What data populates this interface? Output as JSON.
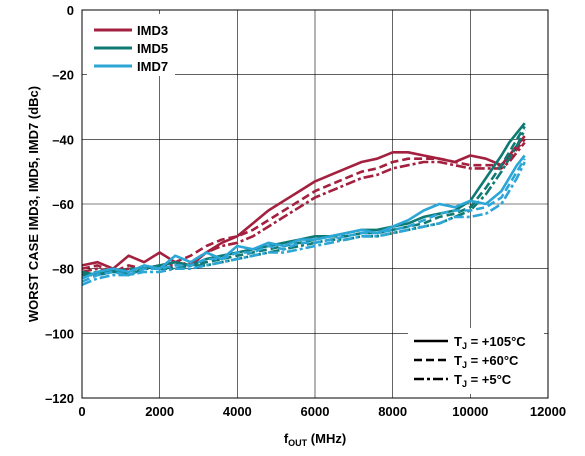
{
  "chart_data": {
    "type": "line",
    "xlabel": {
      "main": "f",
      "sub": "OUT",
      "rest": " (MHz)"
    },
    "ylabel": "WORST CASE IMD3, IMD5, IMD7 (dBc)",
    "xlim": [
      0,
      12000
    ],
    "ylim": [
      -120,
      0
    ],
    "xticks": [
      0,
      2000,
      4000,
      6000,
      8000,
      10000,
      12000
    ],
    "yticks": [
      0,
      -20,
      -40,
      -60,
      -80,
      -100,
      -120
    ],
    "xtick_labels": [
      "0",
      "2000",
      "4000",
      "6000",
      "8000",
      "10000",
      "12000"
    ],
    "ytick_labels": [
      "0",
      "–20",
      "–40",
      "–60",
      "–80",
      "–100",
      "–120"
    ],
    "grid": true,
    "legend_series": {
      "placement": "top-left",
      "items": [
        {
          "label": "IMD3",
          "color": "#a3203f"
        },
        {
          "label": "IMD5",
          "color": "#0e7a73"
        },
        {
          "label": "IMD7",
          "color": "#2ba6d6"
        }
      ]
    },
    "legend_temps": {
      "placement": "bottom-right",
      "items": [
        {
          "label_main": "T",
          "label_sub": "J",
          "label_rest": " = +105°C",
          "dash": "solid"
        },
        {
          "label_main": "T",
          "label_sub": "J",
          "label_rest": " = +60°C",
          "dash": "dashed"
        },
        {
          "label_main": "T",
          "label_sub": "J",
          "label_rest": " = +5°C",
          "dash": "dashdot"
        }
      ]
    },
    "series": [
      {
        "metric": "IMD3",
        "temp": "+105°C",
        "color": "#a3203f",
        "dash": "solid",
        "x": [
          0,
          400,
          800,
          1200,
          1600,
          2000,
          2400,
          2800,
          3200,
          3600,
          4000,
          4400,
          4800,
          5200,
          5600,
          6000,
          6400,
          6800,
          7200,
          7600,
          8000,
          8400,
          8800,
          9200,
          9600,
          10000,
          10400,
          10800,
          11000,
          11200,
          11400
        ],
        "y": [
          -79,
          -78,
          -80,
          -76,
          -78,
          -75,
          -78,
          -79,
          -75,
          -72,
          -70,
          -66,
          -62,
          -59,
          -56,
          -53,
          -51,
          -49,
          -47,
          -46,
          -44,
          -44,
          -45,
          -46,
          -47,
          -45,
          -46,
          -48,
          -45,
          -42,
          -39
        ]
      },
      {
        "metric": "IMD3",
        "temp": "+60°C",
        "color": "#a3203f",
        "dash": "dashed",
        "x": [
          0,
          400,
          800,
          1200,
          1600,
          2000,
          2400,
          2800,
          3200,
          3600,
          4000,
          4400,
          4800,
          5200,
          5600,
          6000,
          6400,
          6800,
          7200,
          7600,
          8000,
          8400,
          8800,
          9200,
          9600,
          10000,
          10400,
          10800,
          11000,
          11200,
          11400
        ],
        "y": [
          -80,
          -79,
          -81,
          -79,
          -80,
          -79,
          -78,
          -76,
          -73,
          -71,
          -70,
          -68,
          -65,
          -62,
          -59,
          -56,
          -54,
          -52,
          -50,
          -49,
          -47,
          -46,
          -46,
          -46,
          -47,
          -48,
          -48,
          -48,
          -46,
          -43,
          -40
        ]
      },
      {
        "metric": "IMD3",
        "temp": "+5°C",
        "color": "#a3203f",
        "dash": "dashdot",
        "x": [
          0,
          400,
          800,
          1200,
          1600,
          2000,
          2400,
          2800,
          3200,
          3600,
          4000,
          4400,
          4800,
          5200,
          5600,
          6000,
          6400,
          6800,
          7200,
          7600,
          8000,
          8400,
          8800,
          9200,
          9600,
          10000,
          10400,
          10800,
          11000,
          11200,
          11400
        ],
        "y": [
          -81,
          -80,
          -81,
          -80,
          -80,
          -79,
          -79,
          -78,
          -75,
          -73,
          -72,
          -70,
          -67,
          -64,
          -61,
          -58,
          -56,
          -54,
          -52,
          -51,
          -49,
          -48,
          -47,
          -47,
          -48,
          -49,
          -49,
          -49,
          -47,
          -44,
          -41
        ]
      },
      {
        "metric": "IMD5",
        "temp": "+105°C",
        "color": "#0e7a73",
        "dash": "solid",
        "x": [
          0,
          400,
          800,
          1200,
          1600,
          2000,
          2400,
          2800,
          3200,
          3600,
          4000,
          4400,
          4800,
          5200,
          5600,
          6000,
          6400,
          6800,
          7200,
          7600,
          8000,
          8400,
          8800,
          9200,
          9600,
          10000,
          10400,
          10800,
          11000,
          11200,
          11400
        ],
        "y": [
          -81,
          -82,
          -80,
          -82,
          -80,
          -79,
          -78,
          -79,
          -77,
          -76,
          -75,
          -74,
          -73,
          -72,
          -71,
          -70,
          -70,
          -69,
          -68,
          -68,
          -67,
          -66,
          -64,
          -63,
          -62,
          -59,
          -52,
          -45,
          -41,
          -38,
          -35
        ]
      },
      {
        "metric": "IMD5",
        "temp": "+60°C",
        "color": "#0e7a73",
        "dash": "dashed",
        "x": [
          0,
          400,
          800,
          1200,
          1600,
          2000,
          2400,
          2800,
          3200,
          3600,
          4000,
          4400,
          4800,
          5200,
          5600,
          6000,
          6400,
          6800,
          7200,
          7600,
          8000,
          8400,
          8800,
          9200,
          9600,
          10000,
          10400,
          10800,
          11000,
          11200,
          11400
        ],
        "y": [
          -82,
          -81,
          -81,
          -80,
          -80,
          -79,
          -80,
          -79,
          -78,
          -77,
          -76,
          -75,
          -74,
          -73,
          -72,
          -71,
          -70,
          -70,
          -69,
          -69,
          -68,
          -67,
          -66,
          -64,
          -63,
          -61,
          -55,
          -48,
          -44,
          -40,
          -36
        ]
      },
      {
        "metric": "IMD5",
        "temp": "+5°C",
        "color": "#0e7a73",
        "dash": "dashdot",
        "x": [
          0,
          400,
          800,
          1200,
          1600,
          2000,
          2400,
          2800,
          3200,
          3600,
          4000,
          4400,
          4800,
          5200,
          5600,
          6000,
          6400,
          6800,
          7200,
          7600,
          8000,
          8400,
          8800,
          9200,
          9600,
          10000,
          10400,
          10800,
          11000,
          11200,
          11400
        ],
        "y": [
          -82,
          -82,
          -81,
          -81,
          -80,
          -80,
          -80,
          -79,
          -79,
          -78,
          -77,
          -76,
          -75,
          -74,
          -73,
          -72,
          -71,
          -71,
          -70,
          -70,
          -69,
          -68,
          -67,
          -66,
          -64,
          -62,
          -57,
          -50,
          -46,
          -42,
          -37
        ]
      },
      {
        "metric": "IMD7",
        "temp": "+105°C",
        "color": "#2ba6d6",
        "dash": "solid",
        "x": [
          0,
          400,
          800,
          1200,
          1600,
          2000,
          2400,
          2800,
          3200,
          3600,
          4000,
          4400,
          4800,
          5200,
          5600,
          6000,
          6400,
          6800,
          7200,
          7600,
          8000,
          8400,
          8800,
          9200,
          9600,
          10000,
          10400,
          10800,
          11000,
          11200,
          11400
        ],
        "y": [
          -83,
          -81,
          -80,
          -81,
          -79,
          -80,
          -76,
          -78,
          -75,
          -77,
          -73,
          -74,
          -72,
          -73,
          -71,
          -71,
          -70,
          -69,
          -68,
          -69,
          -67,
          -65,
          -62,
          -60,
          -61,
          -59,
          -60,
          -56,
          -52,
          -48,
          -45
        ]
      },
      {
        "metric": "IMD7",
        "temp": "+60°C",
        "color": "#2ba6d6",
        "dash": "dashed",
        "x": [
          0,
          400,
          800,
          1200,
          1600,
          2000,
          2400,
          2800,
          3200,
          3600,
          4000,
          4400,
          4800,
          5200,
          5600,
          6000,
          6400,
          6800,
          7200,
          7600,
          8000,
          8400,
          8800,
          9200,
          9600,
          10000,
          10400,
          10800,
          11000,
          11200,
          11400
        ],
        "y": [
          -84,
          -82,
          -81,
          -82,
          -80,
          -80,
          -79,
          -79,
          -77,
          -77,
          -75,
          -75,
          -73,
          -74,
          -72,
          -72,
          -71,
          -70,
          -69,
          -69,
          -68,
          -67,
          -65,
          -63,
          -62,
          -62,
          -61,
          -58,
          -54,
          -50,
          -46
        ]
      },
      {
        "metric": "IMD7",
        "temp": "+5°C",
        "color": "#2ba6d6",
        "dash": "dashdot",
        "x": [
          0,
          400,
          800,
          1200,
          1600,
          2000,
          2400,
          2800,
          3200,
          3600,
          4000,
          4400,
          4800,
          5200,
          5600,
          6000,
          6400,
          6800,
          7200,
          7600,
          8000,
          8400,
          8800,
          9200,
          9600,
          10000,
          10400,
          10800,
          11000,
          11200,
          11400
        ],
        "y": [
          -85,
          -83,
          -82,
          -82,
          -81,
          -81,
          -80,
          -80,
          -79,
          -78,
          -77,
          -76,
          -75,
          -75,
          -74,
          -73,
          -72,
          -71,
          -70,
          -70,
          -69,
          -68,
          -67,
          -66,
          -64,
          -64,
          -63,
          -60,
          -56,
          -52,
          -47
        ]
      }
    ]
  }
}
